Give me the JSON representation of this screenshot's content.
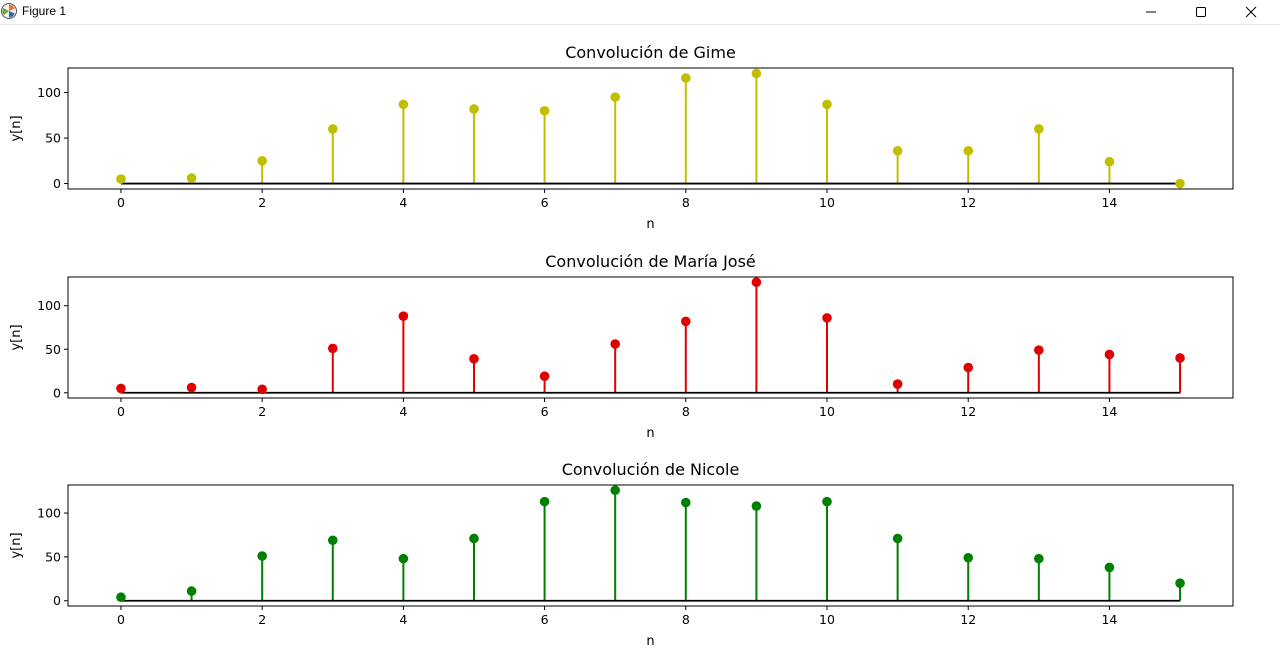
{
  "window": {
    "title": "Figure 1",
    "icons": {
      "app": "matplotlib-icon",
      "minimize": "minimize-icon",
      "maximize": "maximize-icon",
      "close": "close-icon"
    }
  },
  "chart_data": [
    {
      "type": "stem",
      "title": "Convolución de Gime",
      "xlabel": "n",
      "ylabel": "y[n]",
      "color": "#bfbf00",
      "x": [
        0,
        1,
        2,
        3,
        4,
        5,
        6,
        7,
        8,
        9,
        10,
        11,
        12,
        13,
        14,
        15
      ],
      "values": [
        5,
        6,
        25,
        60,
        87,
        82,
        80,
        95,
        116,
        121,
        87,
        36,
        36,
        60,
        24,
        0
      ],
      "xlim": [
        -0.75,
        15.75
      ],
      "ylim": [
        -6,
        127
      ],
      "xticks": [
        0,
        2,
        4,
        6,
        8,
        10,
        12,
        14
      ],
      "yticks": [
        0,
        50,
        100
      ],
      "grid": false
    },
    {
      "type": "stem",
      "title": "Convolución de María José",
      "xlabel": "n",
      "ylabel": "y[n]",
      "color": "#e00000",
      "x": [
        0,
        1,
        2,
        3,
        4,
        5,
        6,
        7,
        8,
        9,
        10,
        11,
        12,
        13,
        14,
        15
      ],
      "values": [
        5,
        6,
        4,
        51,
        88,
        39,
        19,
        56,
        82,
        127,
        86,
        10,
        29,
        49,
        44,
        40
      ],
      "xlim": [
        -0.75,
        15.75
      ],
      "ylim": [
        -6,
        133
      ],
      "xticks": [
        0,
        2,
        4,
        6,
        8,
        10,
        12,
        14
      ],
      "yticks": [
        0,
        50,
        100
      ],
      "grid": false
    },
    {
      "type": "stem",
      "title": "Convolución de Nicole",
      "xlabel": "n",
      "ylabel": "y[n]",
      "color": "#008000",
      "x": [
        0,
        1,
        2,
        3,
        4,
        5,
        6,
        7,
        8,
        9,
        10,
        11,
        12,
        13,
        14,
        15
      ],
      "values": [
        4,
        11,
        51,
        69,
        48,
        71,
        113,
        126,
        112,
        108,
        113,
        71,
        49,
        48,
        38,
        20
      ],
      "xlim": [
        -0.75,
        15.75
      ],
      "ylim": [
        -6,
        132
      ],
      "xticks": [
        0,
        2,
        4,
        6,
        8,
        10,
        12,
        14
      ],
      "yticks": [
        0,
        50,
        100
      ],
      "grid": false
    }
  ]
}
